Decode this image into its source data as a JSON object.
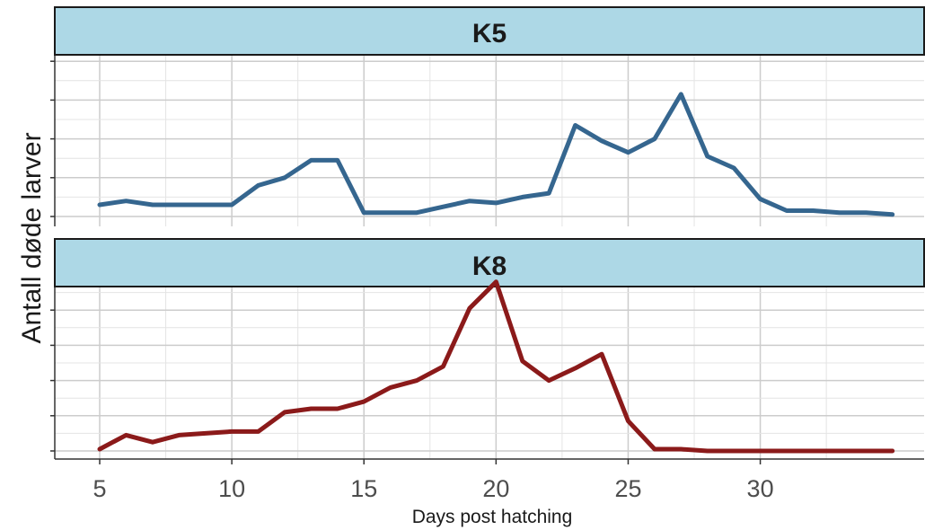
{
  "chart_data": {
    "type": "line",
    "xlabel": "Days post hatching",
    "ylabel": "Antall døde larver",
    "xlim": [
      3.3,
      36.2
    ],
    "xticks": [
      5,
      10,
      15,
      20,
      25,
      30
    ],
    "xtick_labels": [
      "5",
      "10",
      "15",
      "20",
      "25",
      "30"
    ],
    "grid": true,
    "y_tick_labels_shown": false,
    "panels": [
      {
        "strip_label": "K5",
        "color": "#35668f",
        "ylim": [
          0,
          10
        ],
        "x": [
          5,
          6,
          7,
          8,
          9,
          10,
          11,
          12,
          13,
          14,
          15,
          16,
          17,
          18,
          19,
          20,
          21,
          22,
          23,
          24,
          25,
          26,
          27,
          28,
          29,
          30,
          31,
          32,
          33,
          34,
          35
        ],
        "values": [
          0.6,
          0.8,
          0.6,
          0.6,
          0.6,
          0.6,
          1.6,
          2.0,
          2.9,
          2.9,
          0.2,
          0.2,
          0.2,
          0.5,
          0.8,
          0.7,
          1.0,
          1.2,
          4.7,
          3.9,
          3.3,
          4.0,
          6.3,
          3.1,
          2.5,
          0.9,
          0.3,
          0.3,
          0.2,
          0.2,
          0.1
        ]
      },
      {
        "strip_label": "K8",
        "color": "#8b1a1a",
        "ylim": [
          0,
          10
        ],
        "x": [
          5,
          6,
          7,
          8,
          9,
          10,
          11,
          12,
          13,
          14,
          15,
          16,
          17,
          18,
          19,
          20,
          21,
          22,
          23,
          24,
          25,
          26,
          27,
          28,
          29,
          30,
          31,
          32,
          33,
          34,
          35
        ],
        "values": [
          0.1,
          0.9,
          0.5,
          0.9,
          1.0,
          1.1,
          1.1,
          2.2,
          2.4,
          2.4,
          2.8,
          3.6,
          4.0,
          4.8,
          8.1,
          9.6,
          5.1,
          4.0,
          4.7,
          5.5,
          1.7,
          0.1,
          0.1,
          0.0,
          0.0,
          0.0,
          0.0,
          0.0,
          0.0,
          0.0,
          0.0
        ]
      }
    ]
  }
}
